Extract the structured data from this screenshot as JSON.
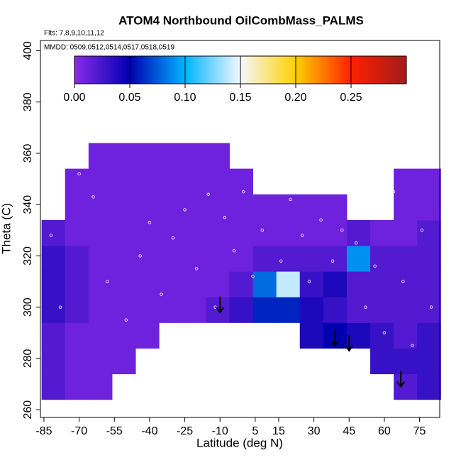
{
  "chart_data": {
    "type": "heatmap",
    "title": "ATOM4 Northbound OilCombMass_PALMS",
    "subtitles": [
      "Flts: 7,8,9,10,11,12",
      "MMDD: 0509,0512,0514,0517,0518,0519"
    ],
    "x_label": "Latitude (deg N)",
    "y_label": "Theta (C)",
    "xlim": [
      -86.5,
      83.6
    ],
    "ylim": [
      257,
      404
    ],
    "xticks": [
      -85,
      -70,
      -55,
      -40,
      -25,
      -10,
      5,
      15,
      30,
      45,
      60,
      75
    ],
    "yticks": [
      260,
      280,
      300,
      320,
      340,
      360,
      380,
      400
    ],
    "x_edges": [
      -86,
      -76,
      -66,
      -56,
      -46,
      -36,
      -26,
      -16,
      -6,
      4,
      14,
      24,
      34,
      44,
      54,
      64,
      74,
      84
    ],
    "y_edges": [
      264,
      274,
      284,
      294,
      304,
      314,
      324,
      334,
      344,
      354,
      364
    ],
    "z": [
      [
        0.02,
        0.01,
        0.01,
        null,
        null,
        null,
        null,
        null,
        null,
        null,
        null,
        null,
        null,
        null,
        null,
        0.02,
        0.03
      ],
      [
        0.02,
        0.01,
        0.01,
        0.01,
        null,
        null,
        null,
        null,
        null,
        null,
        null,
        null,
        null,
        null,
        0.03,
        0.03,
        0.03
      ],
      [
        0.02,
        0.01,
        0.01,
        0.01,
        0.01,
        null,
        null,
        null,
        null,
        null,
        null,
        0.04,
        0.05,
        0.04,
        0.03,
        0.02,
        0.03
      ],
      [
        0.03,
        0.02,
        0.01,
        0.01,
        0.01,
        0.01,
        0.01,
        0.02,
        0.03,
        0.06,
        0.06,
        0.04,
        0.03,
        0.02,
        0.02,
        0.02,
        0.02
      ],
      [
        0.03,
        0.02,
        0.01,
        0.01,
        0.01,
        0.01,
        0.01,
        0.01,
        0.02,
        0.08,
        0.14,
        0.03,
        0.04,
        0.02,
        0.02,
        0.02,
        0.02
      ],
      [
        0.03,
        0.02,
        0.01,
        0.01,
        0.01,
        0.01,
        0.01,
        0.01,
        0.01,
        0.02,
        0.02,
        0.02,
        0.02,
        0.09,
        0.02,
        0.02,
        0.02
      ],
      [
        0.02,
        0.01,
        0.01,
        0.01,
        0.01,
        0.01,
        0.01,
        0.01,
        0.01,
        0.01,
        0.01,
        0.01,
        0.01,
        0.02,
        0.01,
        0.01,
        0.02
      ],
      [
        null,
        0.01,
        0.01,
        0.01,
        0.01,
        0.01,
        0.01,
        0.01,
        0.01,
        0.01,
        0.01,
        0.01,
        0.01,
        null,
        null,
        0.01,
        0.01
      ],
      [
        null,
        0.01,
        0.01,
        0.01,
        0.01,
        0.01,
        0.01,
        0.01,
        0.01,
        null,
        null,
        null,
        null,
        null,
        null,
        0.01,
        0.01
      ],
      [
        null,
        null,
        0.01,
        0.01,
        0.01,
        0.01,
        0.01,
        0.01,
        null,
        null,
        null,
        null,
        null,
        null,
        null,
        null,
        null
      ]
    ],
    "zlim": [
      0,
      0.3
    ],
    "colors": [
      "#8a2be8",
      "#0000b0",
      "#00b4ff",
      "#f4f8ff",
      "#ffd000",
      "#ff2000",
      "#a01c1c"
    ],
    "zticks": [
      {
        "value": 0,
        "label": "0.00"
      },
      0.05,
      {
        "value": 0.1,
        "label": "0.10"
      },
      0.15,
      {
        "value": 0.2,
        "label": "0.20"
      },
      0.25
    ],
    "points": {
      "x": [
        -82,
        -78,
        -70,
        -64,
        -58,
        -50,
        -44,
        -40,
        -35,
        -30,
        -25,
        -20,
        -15,
        -12,
        -8,
        -4,
        0,
        4,
        8,
        12,
        16,
        20,
        25,
        28,
        33,
        38,
        42,
        48,
        52,
        56,
        60,
        64,
        68,
        72,
        76,
        80
      ],
      "y": [
        328,
        300,
        352,
        343,
        310,
        295,
        320,
        333,
        305,
        327,
        338,
        315,
        344,
        300,
        335,
        322,
        345,
        312,
        330,
        348,
        318,
        342,
        328,
        310,
        334,
        318,
        330,
        325,
        300,
        316,
        290,
        345,
        310,
        285,
        330,
        300
      ]
    },
    "arrows": {
      "x": [
        -10,
        39,
        45,
        67
      ],
      "y": [
        298,
        285,
        283,
        269
      ]
    }
  }
}
